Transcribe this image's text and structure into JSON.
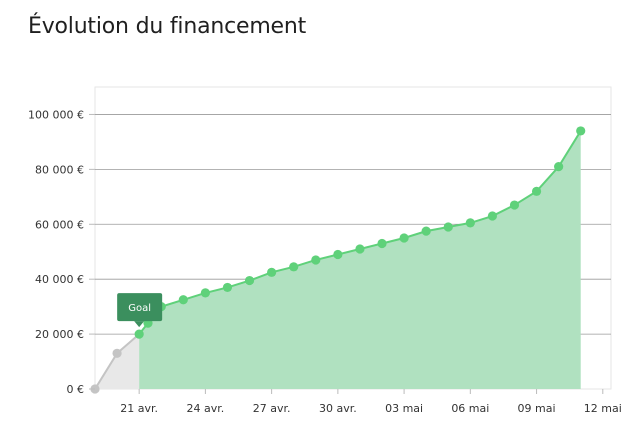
{
  "title": "Évolution du financement",
  "chart_data": {
    "type": "area",
    "ylim": [
      0,
      110000
    ],
    "y_ticks": [
      {
        "value": 0,
        "label": "0 €"
      },
      {
        "value": 20000,
        "label": "20 000 €"
      },
      {
        "value": 40000,
        "label": "40 000 €"
      },
      {
        "value": 60000,
        "label": "60 000 €"
      },
      {
        "value": 80000,
        "label": "80 000 €"
      },
      {
        "value": 100000,
        "label": "100 000 €"
      }
    ],
    "x_ticks": [
      {
        "day": 2,
        "label": "21 avr."
      },
      {
        "day": 5,
        "label": "24 avr."
      },
      {
        "day": 8,
        "label": "27 avr."
      },
      {
        "day": 11,
        "label": "30 avr."
      },
      {
        "day": 14,
        "label": "03 mai"
      },
      {
        "day": 17,
        "label": "06 mai"
      },
      {
        "day": 20,
        "label": "09 mai"
      },
      {
        "day": 23,
        "label": "12 mai"
      }
    ],
    "x_range": [
      0,
      23.1
    ],
    "goal": {
      "label": "Goal",
      "value": 20000,
      "index": 2
    },
    "series": [
      {
        "color_before_goal": "#c4c4c4",
        "color_after_goal": "#5fd17a",
        "fill_before_goal": "#e8e8e8",
        "fill_after_goal": "#b0e1c0",
        "points": [
          {
            "x": 0,
            "y": 0
          },
          {
            "x": 1,
            "y": 13000
          },
          {
            "x": 2,
            "y": 20000
          },
          {
            "x": 2.4,
            "y": 24000
          },
          {
            "x": 3,
            "y": 30000
          },
          {
            "x": 4,
            "y": 32500
          },
          {
            "x": 5,
            "y": 35000
          },
          {
            "x": 6,
            "y": 37000
          },
          {
            "x": 7,
            "y": 39500
          },
          {
            "x": 8,
            "y": 42500
          },
          {
            "x": 9,
            "y": 44500
          },
          {
            "x": 10,
            "y": 47000
          },
          {
            "x": 11,
            "y": 49000
          },
          {
            "x": 12,
            "y": 51000
          },
          {
            "x": 13,
            "y": 53000
          },
          {
            "x": 14,
            "y": 55000
          },
          {
            "x": 15,
            "y": 57500
          },
          {
            "x": 16,
            "y": 59000
          },
          {
            "x": 17,
            "y": 60500
          },
          {
            "x": 18,
            "y": 63000
          },
          {
            "x": 19,
            "y": 67000
          },
          {
            "x": 20,
            "y": 72000
          },
          {
            "x": 21,
            "y": 81000
          },
          {
            "x": 22,
            "y": 94000
          }
        ]
      }
    ],
    "grid": true,
    "goal_tick_color": "#2e8b57",
    "goal_box_color": "#3b8f5e"
  }
}
